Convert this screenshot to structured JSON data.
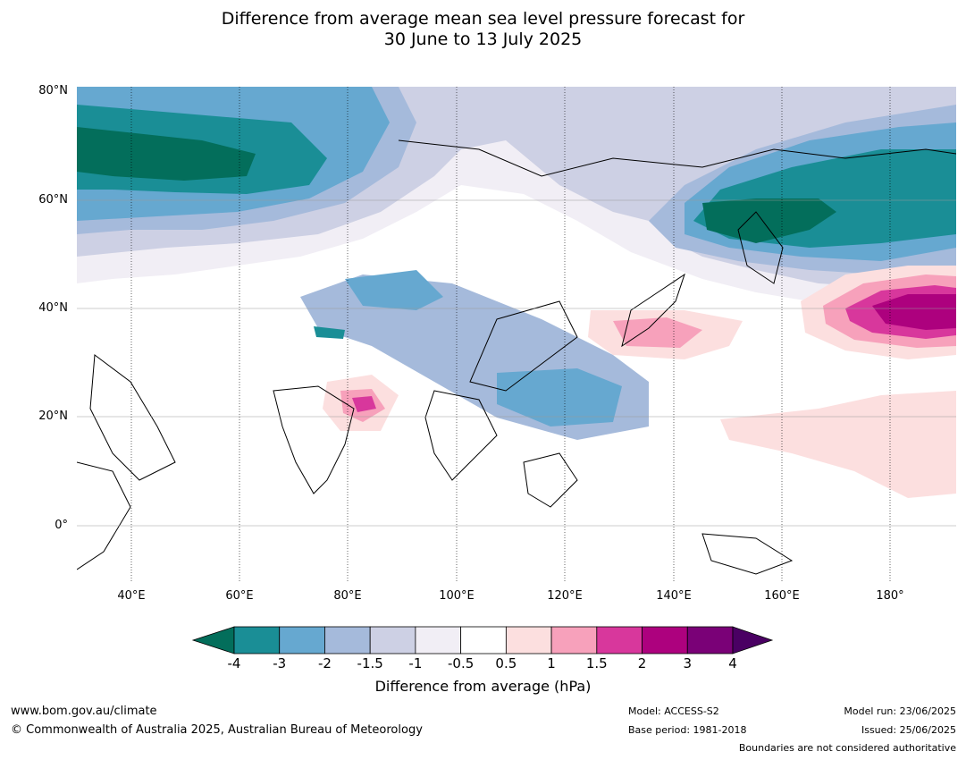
{
  "title": {
    "line1": "Difference from average mean sea level pressure forecast for",
    "line2": "30 June to 13 July 2025"
  },
  "lat_labels": [
    "80°N",
    "60°N",
    "40°N",
    "20°N",
    "0°"
  ],
  "lon_labels": [
    "40°E",
    "60°E",
    "80°E",
    "100°E",
    "120°E",
    "140°E",
    "160°E",
    "180°"
  ],
  "colorbar": {
    "label": "Difference from average (hPa)",
    "ticks": [
      "-4",
      "-3",
      "-2",
      "-1.5",
      "-1",
      "-0.5",
      "0.5",
      "1",
      "1.5",
      "2",
      "3",
      "4"
    ],
    "colors": [
      "#036e5b",
      "#1a8e96",
      "#66a8d0",
      "#a5badb",
      "#cdd0e4",
      "#f1eef5",
      "#ffffff",
      "#fcdfdf",
      "#f7a1bb",
      "#d8379c",
      "#ad017e",
      "#7a0177",
      "#4a0063"
    ]
  },
  "footer": {
    "website": "www.bom.gov.au/climate",
    "copyright": "© Commonwealth of Australia 2025, Australian Bureau of Meteorology",
    "model": "Model: ACCESS-S2",
    "base_period": "Base period: 1981-2018",
    "model_run": "Model run: 23/06/2025",
    "issued": "Issued: 25/06/2025",
    "disclaimer": "Boundaries are not considered authoritative"
  }
}
